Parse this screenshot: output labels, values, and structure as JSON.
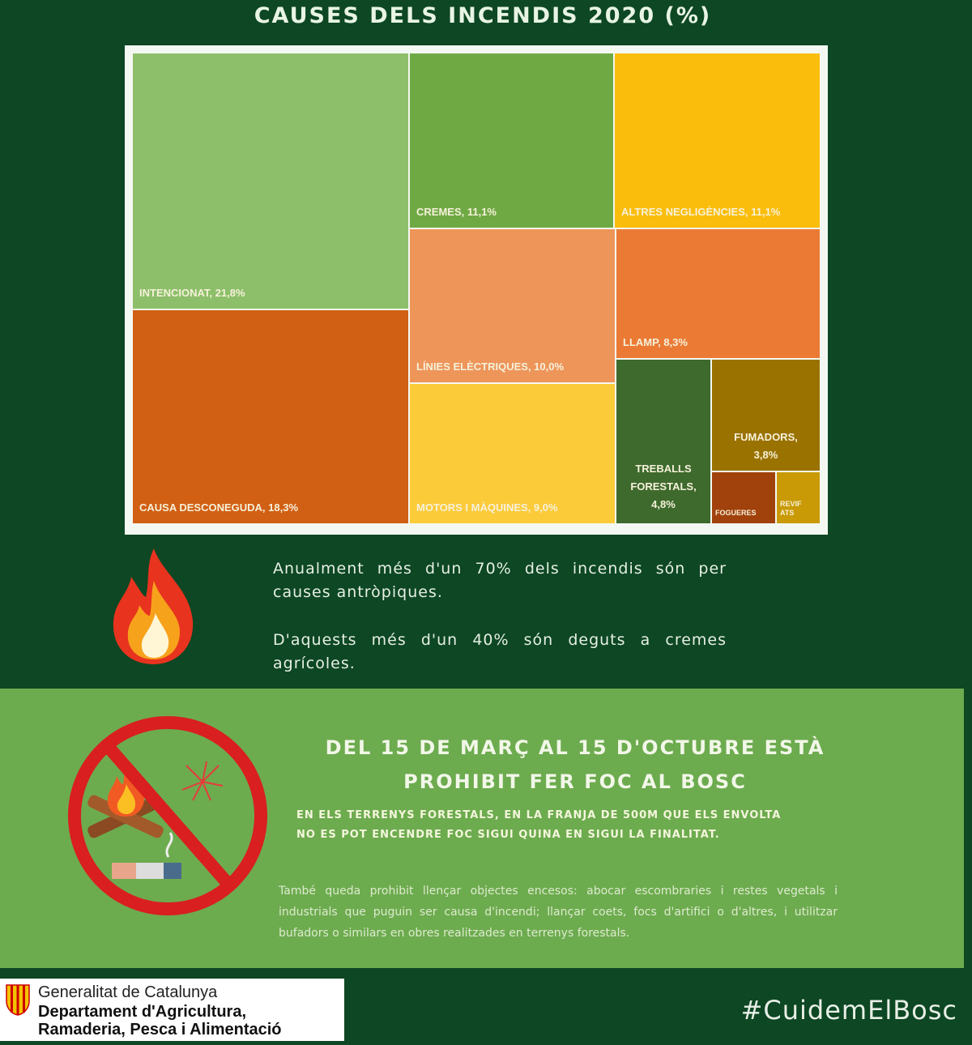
{
  "chart_data": {
    "type": "treemap",
    "title": "CAUSES DELS INCENDIS 2020 (%)",
    "items": [
      {
        "name": "INTENCIONAT",
        "label": "INTENCIONAT, 21,8%",
        "value": 21.8,
        "color": "#8dbf6a"
      },
      {
        "name": "CAUSA DESCONEGUDA",
        "label": "CAUSA DESCONEGUDA, 18,3%",
        "value": 18.3,
        "color": "#d15f14"
      },
      {
        "name": "CREMES",
        "label": "CREMES, 11,1%",
        "value": 11.1,
        "color": "#6fa944"
      },
      {
        "name": "ALTRES NEGLIGÈNCIES",
        "label": "ALTRES NEGLIGÈNCIES, 11,1%",
        "value": 11.1,
        "color": "#fbbd0b"
      },
      {
        "name": "LÍNIES ELÈCTRIQUES",
        "label": "LÍNIES ELÈCTRIQUES, 10,0%",
        "value": 10.0,
        "color": "#ee955a"
      },
      {
        "name": "MOTORS I MÀQUINES",
        "label": "MOTORS I MÀQUINES, 9,0%",
        "value": 9.0,
        "color": "#fccb3a"
      },
      {
        "name": "LLAMP",
        "label": "LLAMP, 8,3%",
        "value": 8.3,
        "color": "#eb7a35"
      },
      {
        "name": "TREBALLS FORESTALS",
        "label": "TREBALLS FORESTALS, 4,8%",
        "value": 4.8,
        "color": "#3e6a2d"
      },
      {
        "name": "FUMADORS",
        "label": "FUMADORS, 3,8%",
        "value": 3.8,
        "color": "#9a7200"
      },
      {
        "name": "FOGUERES",
        "label": "FOGUERES",
        "value": 1.0,
        "color": "#a1420c"
      },
      {
        "name": "REVIFATS",
        "label": "REVIF ATS",
        "value": 0.8,
        "color": "#c99a06"
      }
    ]
  },
  "info": {
    "p1": "Anualment més d'un 70% dels incendis són per causes antròpiques.",
    "p2": "D'aquests més d'un 40% són deguts a cremes agrícoles."
  },
  "ban": {
    "headline1": "DEL 15 DE MARÇ AL 15 D'OCTUBRE ESTÀ",
    "headline2": "PROHIBIT FER FOC AL BOSC",
    "sub1": "EN ELS TERRENYS FORESTALS, EN LA FRANJA DE 500M QUE ELS ENVOLTA",
    "sub2": "NO ES POT ENCENDRE FOC SIGUI QUINA EN SIGUI LA FINALITAT.",
    "detail": "També queda prohibit llençar objectes encesos: abocar escombraries i restes vegetals i industrials que puguin ser causa d'incendi; llançar coets, focs d'artifici o d'altres, i utilitzar bufadors o similars en obres realitzades en terrenys forestals."
  },
  "footer": {
    "org": "Generalitat de Catalunya",
    "dept1": "Departament d'Agricultura,",
    "dept2": "Ramaderia, Pesca i Alimentació",
    "hashtag": "#CuidemElBosc"
  }
}
